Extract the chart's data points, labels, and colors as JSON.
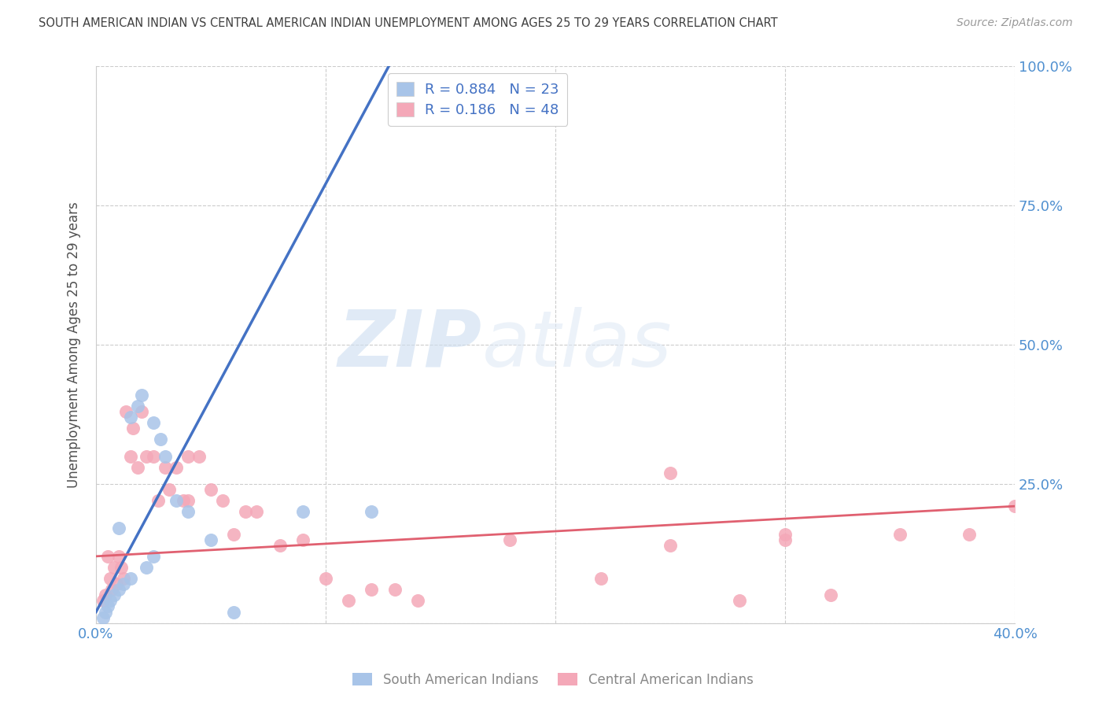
{
  "title": "SOUTH AMERICAN INDIAN VS CENTRAL AMERICAN INDIAN UNEMPLOYMENT AMONG AGES 25 TO 29 YEARS CORRELATION CHART",
  "source": "Source: ZipAtlas.com",
  "ylabel": "Unemployment Among Ages 25 to 29 years",
  "xlim": [
    0.0,
    0.4
  ],
  "ylim": [
    0.0,
    1.0
  ],
  "xticks": [
    0.0,
    0.1,
    0.2,
    0.3,
    0.4
  ],
  "xticklabels": [
    "0.0%",
    "",
    "",
    "",
    "40.0%"
  ],
  "yticks": [
    0.0,
    0.25,
    0.5,
    0.75,
    1.0
  ],
  "yticklabels": [
    "",
    "25.0%",
    "50.0%",
    "75.0%",
    "100.0%"
  ],
  "blue_R": 0.884,
  "blue_N": 23,
  "pink_R": 0.186,
  "pink_N": 48,
  "blue_color": "#a8c4e8",
  "pink_color": "#f4a8b8",
  "blue_line_color": "#4472c4",
  "pink_line_color": "#e06070",
  "watermark_zip": "ZIP",
  "watermark_atlas": "atlas",
  "legend_label_blue": "South American Indians",
  "legend_label_pink": "Central American Indians",
  "blue_scatter_x": [
    0.003,
    0.004,
    0.005,
    0.006,
    0.008,
    0.01,
    0.01,
    0.012,
    0.015,
    0.015,
    0.018,
    0.02,
    0.022,
    0.025,
    0.025,
    0.028,
    0.03,
    0.035,
    0.04,
    0.05,
    0.06,
    0.09,
    0.12
  ],
  "blue_scatter_y": [
    0.01,
    0.02,
    0.03,
    0.04,
    0.05,
    0.06,
    0.17,
    0.07,
    0.08,
    0.37,
    0.39,
    0.41,
    0.1,
    0.12,
    0.36,
    0.33,
    0.3,
    0.22,
    0.2,
    0.15,
    0.02,
    0.2,
    0.2
  ],
  "pink_scatter_x": [
    0.003,
    0.004,
    0.005,
    0.006,
    0.007,
    0.008,
    0.009,
    0.01,
    0.011,
    0.012,
    0.013,
    0.015,
    0.016,
    0.018,
    0.02,
    0.022,
    0.025,
    0.027,
    0.03,
    0.032,
    0.035,
    0.038,
    0.04,
    0.04,
    0.045,
    0.05,
    0.055,
    0.06,
    0.065,
    0.07,
    0.08,
    0.09,
    0.1,
    0.11,
    0.12,
    0.13,
    0.14,
    0.18,
    0.22,
    0.25,
    0.28,
    0.3,
    0.32,
    0.35,
    0.38,
    0.4,
    0.25,
    0.3
  ],
  "pink_scatter_y": [
    0.04,
    0.05,
    0.12,
    0.08,
    0.06,
    0.1,
    0.07,
    0.12,
    0.1,
    0.08,
    0.38,
    0.3,
    0.35,
    0.28,
    0.38,
    0.3,
    0.3,
    0.22,
    0.28,
    0.24,
    0.28,
    0.22,
    0.22,
    0.3,
    0.3,
    0.24,
    0.22,
    0.16,
    0.2,
    0.2,
    0.14,
    0.15,
    0.08,
    0.04,
    0.06,
    0.06,
    0.04,
    0.15,
    0.08,
    0.14,
    0.04,
    0.16,
    0.05,
    0.16,
    0.16,
    0.21,
    0.27,
    0.15
  ],
  "blue_line_x0": 0.0,
  "blue_line_y0": 0.02,
  "blue_line_x1": 0.13,
  "blue_line_y1": 1.02,
  "pink_line_x0": 0.0,
  "pink_line_y0": 0.12,
  "pink_line_x1": 0.4,
  "pink_line_y1": 0.21,
  "background_color": "#ffffff",
  "grid_color": "#cccccc",
  "title_color": "#404040",
  "axis_tick_color_right": "#5090d0",
  "axis_tick_color_bottom": "#5090d0",
  "legend_text_color": "#4472c4"
}
